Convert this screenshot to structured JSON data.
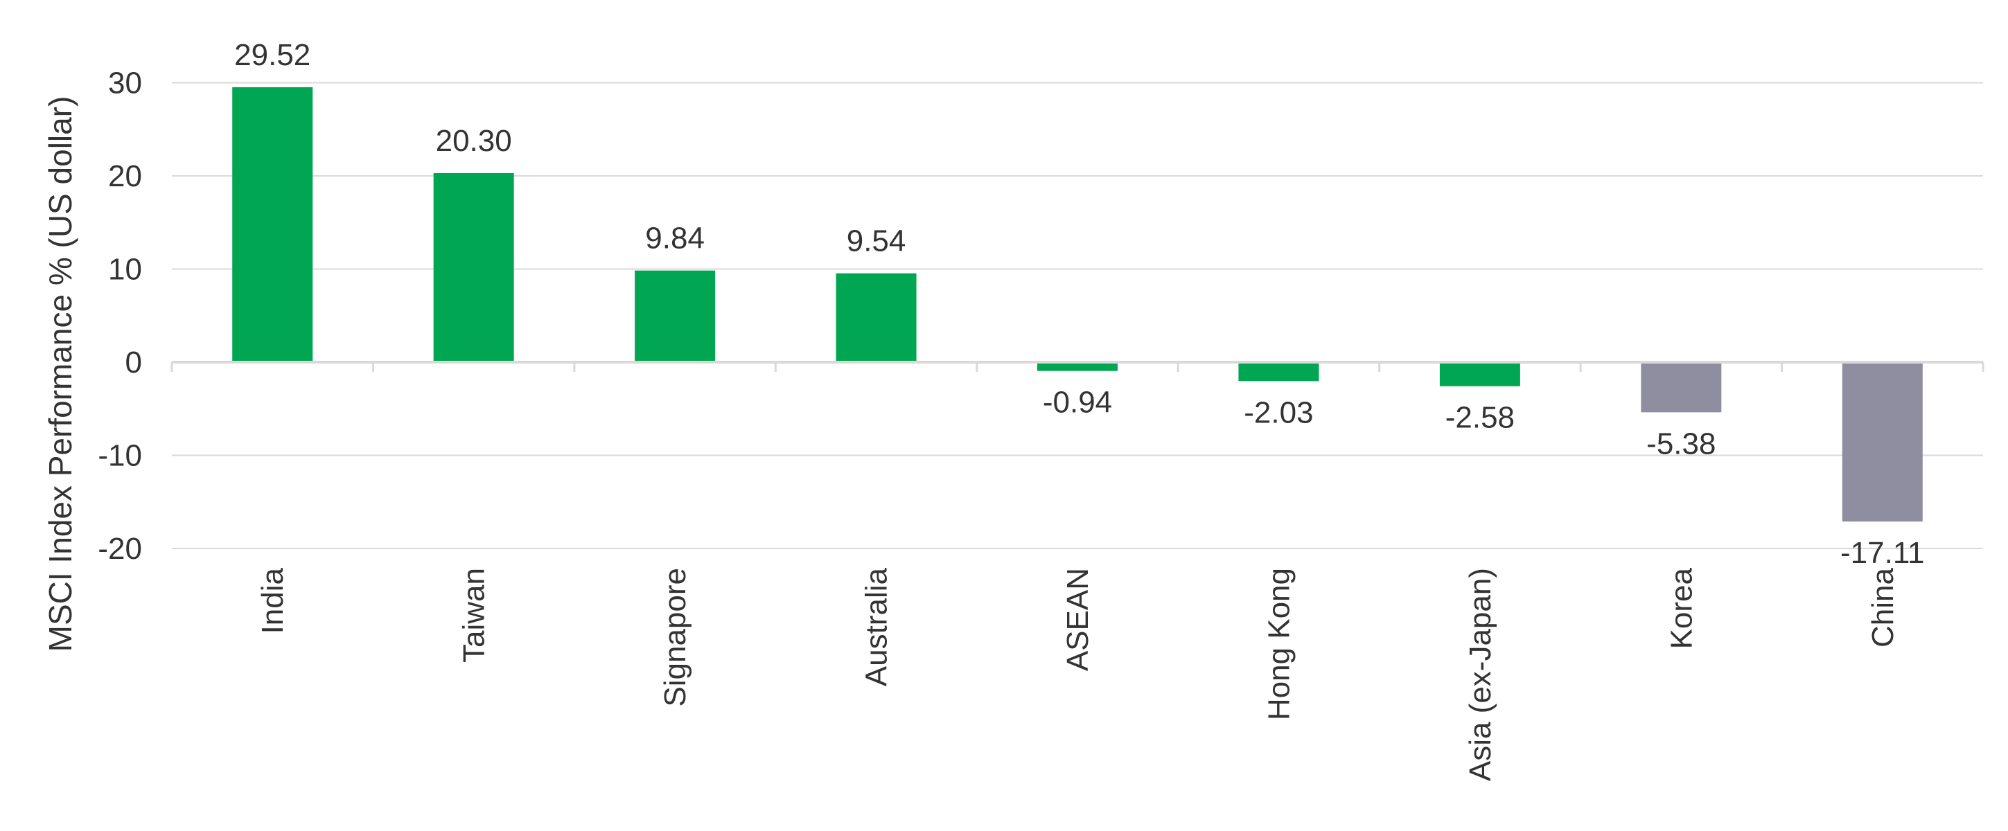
{
  "chart_data": {
    "type": "bar",
    "title": "",
    "xlabel": "",
    "ylabel": "MSCI Index Performance % (US dollar)",
    "categories": [
      "India",
      "Taiwan",
      "Signapore",
      "Australia",
      "ASEAN",
      "Hong Kong",
      "Asia (ex-Japan)",
      "Korea",
      "China"
    ],
    "values": [
      29.52,
      20.3,
      9.84,
      9.54,
      -0.94,
      -2.03,
      -2.58,
      -5.38,
      -17.11
    ],
    "value_labels": [
      "29.52",
      "20.30",
      "9.84",
      "9.54",
      "-0.94",
      "-2.03",
      "-2.58",
      "-5.38",
      "-17.11"
    ],
    "yticks": [
      "30",
      "20",
      "10",
      "0",
      "-10",
      "-20"
    ],
    "ylim": [
      -20,
      30
    ],
    "grid": true,
    "legend": "none",
    "colors": {
      "green": "#00a651",
      "gray": "#8e8ea0",
      "grid": "#d9d9d9",
      "axis": "#d9d9d9",
      "text": "#333333"
    },
    "bar_color_keys": [
      "green",
      "green",
      "green",
      "green",
      "green",
      "green",
      "green",
      "gray",
      "gray"
    ]
  }
}
